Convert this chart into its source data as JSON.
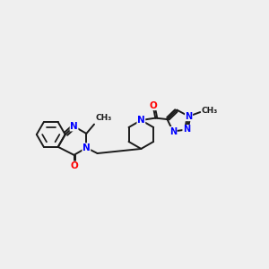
{
  "background_color": "#efefef",
  "bond_color": "#1a1a1a",
  "N_color": "#0000ff",
  "O_color": "#ff0000",
  "line_width": 1.4,
  "font_size_atom": 7.5,
  "fig_width": 3.0,
  "fig_height": 3.0,
  "xlim": [
    0,
    12
  ],
  "ylim": [
    1,
    10
  ]
}
